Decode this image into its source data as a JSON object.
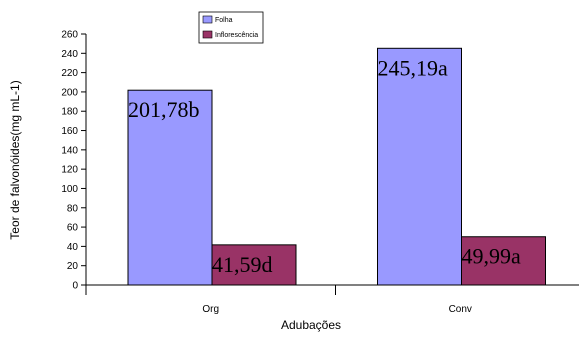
{
  "chart_data": {
    "type": "bar",
    "categories": [
      "Org",
      "Conv"
    ],
    "series": [
      {
        "name": "Folha",
        "values": [
          201.78,
          245.19
        ],
        "labels": [
          "201,78b",
          "245,19a"
        ],
        "color": "#9999ff"
      },
      {
        "name": "Inflorescência",
        "values": [
          41.59,
          49.99
        ],
        "labels": [
          "41,59d",
          "49,99a"
        ],
        "color": "#993366"
      }
    ],
    "xlabel": "Adubações",
    "ylabel": "Teor de falvonóides(mg mL-1)",
    "ylim": [
      0,
      260
    ],
    "yticks": [
      0,
      20,
      40,
      60,
      80,
      100,
      120,
      140,
      160,
      180,
      200,
      220,
      240,
      260
    ],
    "grid": false,
    "legend_position": "top-center"
  }
}
